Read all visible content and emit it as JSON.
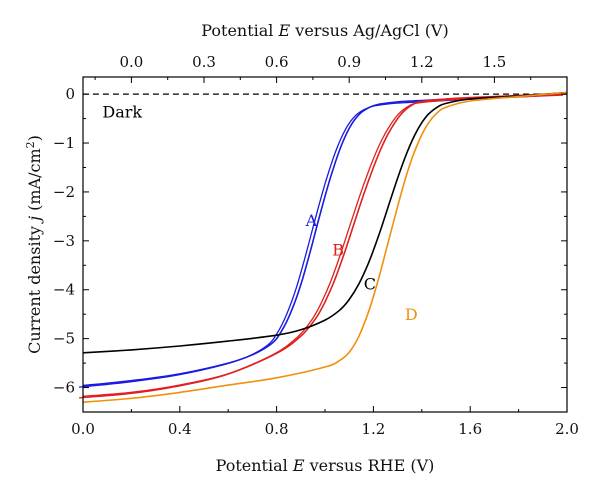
{
  "chart_data": {
    "type": "line",
    "title": "",
    "xlabel": "Potential E versus RHE (V)",
    "xlabel_parts": {
      "prefix": "Potential ",
      "italic": "E",
      "suffix": " versus RHE (V)"
    },
    "ylabel_parts": {
      "prefix": "Current density ",
      "italic": "j",
      "suffix": " (mA/cm",
      "sup": "2",
      "end": ")"
    },
    "x2label_parts": {
      "prefix": "Potential ",
      "italic": "E",
      "suffix": " versus Ag/AgCl (V)"
    },
    "xlim": [
      0.0,
      2.0
    ],
    "ylim": [
      -6.5,
      0.35
    ],
    "x2lim": [
      -0.2,
      1.8
    ],
    "x_ticks": [
      "0.0",
      "0.4",
      "0.8",
      "1.2",
      "1.6",
      "2.0"
    ],
    "y_ticks": [
      "0",
      "−1",
      "−2",
      "−3",
      "−4",
      "−5",
      "−6"
    ],
    "x2_ticks": [
      "0.0",
      "0.3",
      "0.6",
      "0.9",
      "1.2",
      "1.5"
    ],
    "grid": false,
    "series": [
      {
        "name": "Dark",
        "color": "#000000",
        "dashed": true,
        "x": [
          0.0,
          2.0
        ],
        "y": [
          0.0,
          0.0
        ]
      },
      {
        "name": "A",
        "color": "#1a1ae0",
        "doubled": true,
        "x": [
          0.0,
          0.2,
          0.4,
          0.6,
          0.7,
          0.78,
          0.82,
          0.86,
          0.9,
          0.94,
          0.98,
          1.02,
          1.06,
          1.1,
          1.14,
          1.18,
          1.22,
          1.3,
          1.4,
          1.6,
          1.8,
          2.0
        ],
        "y": [
          -5.96,
          -5.86,
          -5.72,
          -5.5,
          -5.33,
          -5.1,
          -4.85,
          -4.45,
          -3.9,
          -3.2,
          -2.45,
          -1.75,
          -1.15,
          -0.7,
          -0.42,
          -0.28,
          -0.21,
          -0.16,
          -0.13,
          -0.08,
          -0.03,
          0.02
        ]
      },
      {
        "name": "B",
        "color": "#e02020",
        "doubled": true,
        "x": [
          0.0,
          0.2,
          0.4,
          0.6,
          0.8,
          0.9,
          0.96,
          1.0,
          1.04,
          1.08,
          1.12,
          1.16,
          1.2,
          1.24,
          1.28,
          1.32,
          1.36,
          1.4,
          1.5,
          1.6,
          1.8,
          2.0
        ],
        "y": [
          -6.18,
          -6.1,
          -5.95,
          -5.72,
          -5.3,
          -4.95,
          -4.6,
          -4.25,
          -3.8,
          -3.25,
          -2.65,
          -2.05,
          -1.5,
          -1.02,
          -0.65,
          -0.38,
          -0.22,
          -0.15,
          -0.1,
          -0.07,
          -0.03,
          0.01
        ]
      },
      {
        "name": "C",
        "color": "#000000",
        "doubled": false,
        "x": [
          0.0,
          0.2,
          0.4,
          0.6,
          0.8,
          0.9,
          1.0,
          1.06,
          1.1,
          1.14,
          1.18,
          1.22,
          1.26,
          1.3,
          1.34,
          1.38,
          1.42,
          1.46,
          1.5,
          1.6,
          1.8,
          2.0
        ],
        "y": [
          -5.29,
          -5.23,
          -5.15,
          -5.05,
          -4.93,
          -4.82,
          -4.62,
          -4.42,
          -4.2,
          -3.88,
          -3.45,
          -2.92,
          -2.32,
          -1.72,
          -1.18,
          -0.75,
          -0.45,
          -0.28,
          -0.19,
          -0.1,
          -0.04,
          0.03
        ]
      },
      {
        "name": "D",
        "color": "#f0900c",
        "doubled": false,
        "x": [
          0.0,
          0.2,
          0.4,
          0.6,
          0.8,
          1.0,
          1.06,
          1.1,
          1.14,
          1.18,
          1.22,
          1.26,
          1.3,
          1.34,
          1.38,
          1.42,
          1.46,
          1.5,
          1.6,
          1.8,
          2.0
        ],
        "y": [
          -6.3,
          -6.22,
          -6.1,
          -5.95,
          -5.8,
          -5.58,
          -5.45,
          -5.28,
          -4.95,
          -4.45,
          -3.8,
          -3.05,
          -2.3,
          -1.6,
          -1.05,
          -0.65,
          -0.4,
          -0.27,
          -0.14,
          -0.05,
          0.03
        ]
      }
    ],
    "labels": [
      {
        "text": "Dark",
        "x": 0.08,
        "y": -0.48
      },
      {
        "text": "A",
        "x": 0.92,
        "y": -2.7
      },
      {
        "text": "B",
        "x": 1.03,
        "y": -3.3
      },
      {
        "text": "C",
        "x": 1.16,
        "y": -4.0
      },
      {
        "text": "D",
        "x": 1.33,
        "y": -4.62
      }
    ]
  }
}
